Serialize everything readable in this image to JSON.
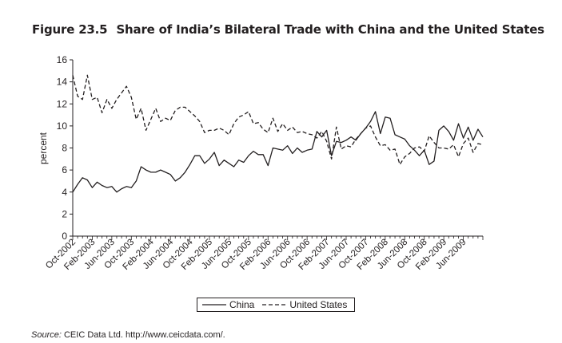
{
  "figure": {
    "number": "Figure 23.5",
    "title": "Share of India’s Bilateral Trade with China and the United States"
  },
  "source": {
    "label": "Source:",
    "text": "CEIC Data Ltd. http://www.ceicdata.com/."
  },
  "chart_data": {
    "type": "line",
    "title": "",
    "xlabel": "",
    "ylabel": "percent",
    "ylim": [
      0,
      16
    ],
    "yticks": [
      0,
      2,
      4,
      6,
      8,
      10,
      12,
      14,
      16
    ],
    "grid": false,
    "legend_position": "bottom-center",
    "x_tick_labels": [
      "Oct-2002",
      "Feb-2003",
      "Jun-2003",
      "Oct-2003",
      "Feb-2004",
      "Jun-2004",
      "Oct-2004",
      "Feb-2005",
      "Jun-2005",
      "Oct-2005",
      "Feb-2006",
      "Jun-2006",
      "Oct-2006",
      "Feb-2007",
      "Jun-2007",
      "Oct-2007",
      "Feb-2008",
      "Jun-2008",
      "Oct-2008",
      "Feb-2009",
      "Jun-2009"
    ],
    "x_range": [
      "Oct-2002",
      "Sep-2009"
    ],
    "series": [
      {
        "name": "China",
        "style": "solid",
        "color": "#231f20",
        "values": [
          4.0,
          4.7,
          5.3,
          5.1,
          4.4,
          4.9,
          4.6,
          4.4,
          4.5,
          4.0,
          4.3,
          4.5,
          4.4,
          5.0,
          6.3,
          6.0,
          5.8,
          5.8,
          6.0,
          5.8,
          5.6,
          5.0,
          5.3,
          5.8,
          6.5,
          7.3,
          7.3,
          6.6,
          7.0,
          7.6,
          6.4,
          6.9,
          6.6,
          6.3,
          6.9,
          6.7,
          7.3,
          7.7,
          7.4,
          7.4,
          6.4,
          8.0,
          7.9,
          7.8,
          8.2,
          7.5,
          8.0,
          7.6,
          7.8,
          7.9,
          9.5,
          9.0,
          9.6,
          7.3,
          8.6,
          8.5,
          8.7,
          9.0,
          8.7,
          9.3,
          9.8,
          10.4,
          11.3,
          9.3,
          10.8,
          10.7,
          9.2,
          9.0,
          8.8,
          8.2,
          7.8,
          7.3,
          7.8,
          6.5,
          6.8,
          9.6,
          10.0,
          9.5,
          8.7,
          10.2,
          8.9,
          9.9,
          8.7,
          9.7,
          9.0
        ]
      },
      {
        "name": "United States",
        "style": "dashed",
        "color": "#231f20",
        "values": [
          14.6,
          12.7,
          12.4,
          14.6,
          12.4,
          12.6,
          11.2,
          12.4,
          11.6,
          12.4,
          13.0,
          13.6,
          12.6,
          10.6,
          11.6,
          9.6,
          10.6,
          11.6,
          10.4,
          10.7,
          10.5,
          11.4,
          11.7,
          11.7,
          11.3,
          10.9,
          10.4,
          9.4,
          9.6,
          9.6,
          9.8,
          9.6,
          9.2,
          10.2,
          10.8,
          11.0,
          11.3,
          10.2,
          10.3,
          9.7,
          9.4,
          10.7,
          9.5,
          10.2,
          9.6,
          9.9,
          9.4,
          9.5,
          9.3,
          9.2,
          8.9,
          9.5,
          8.6,
          7.0,
          9.9,
          7.9,
          8.2,
          8.1,
          8.8,
          9.3,
          9.8,
          10.0,
          9.0,
          8.2,
          8.3,
          7.8,
          7.9,
          6.5,
          7.2,
          7.5,
          8.0,
          8.1,
          7.7,
          9.1,
          8.5,
          8.0,
          8.0,
          7.9,
          8.3,
          7.2,
          8.4,
          8.9,
          7.6,
          8.4,
          8.3
        ]
      }
    ]
  }
}
